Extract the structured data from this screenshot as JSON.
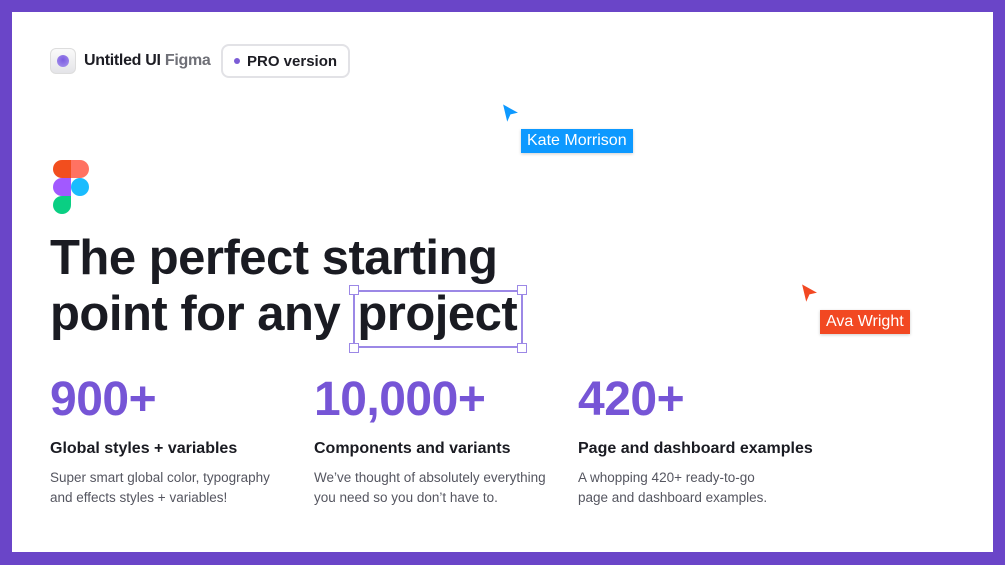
{
  "brand": {
    "name": "Untitled UI",
    "suffix": "Figma"
  },
  "badge": {
    "label": "PRO version"
  },
  "hero": {
    "line1": "The perfect starting",
    "line2_prefix": "point for any",
    "line2_selected": "project"
  },
  "stats": [
    {
      "value": "900+",
      "title": "Global styles + variables",
      "desc_line1": "Super smart global color, typography",
      "desc_line2": "and effects styles + variables!"
    },
    {
      "value": "10,000+",
      "title": "Components and variants",
      "desc_line1": "We’ve thought of absolutely everything",
      "desc_line2": "you need so you don’t have to."
    },
    {
      "value": "420+",
      "title": "Page and dashboard examples",
      "desc_line1": "A whopping 420+ ready-to-go",
      "desc_line2": "page and dashboard examples."
    }
  ],
  "cursors": [
    {
      "name": "Kate Morrison",
      "color": "#0d99ff"
    },
    {
      "name": "Ava Wright",
      "color": "#f24822"
    }
  ],
  "colors": {
    "border": "#6a45c8",
    "accent": "#7655d6",
    "selection": "#9c88e6"
  }
}
